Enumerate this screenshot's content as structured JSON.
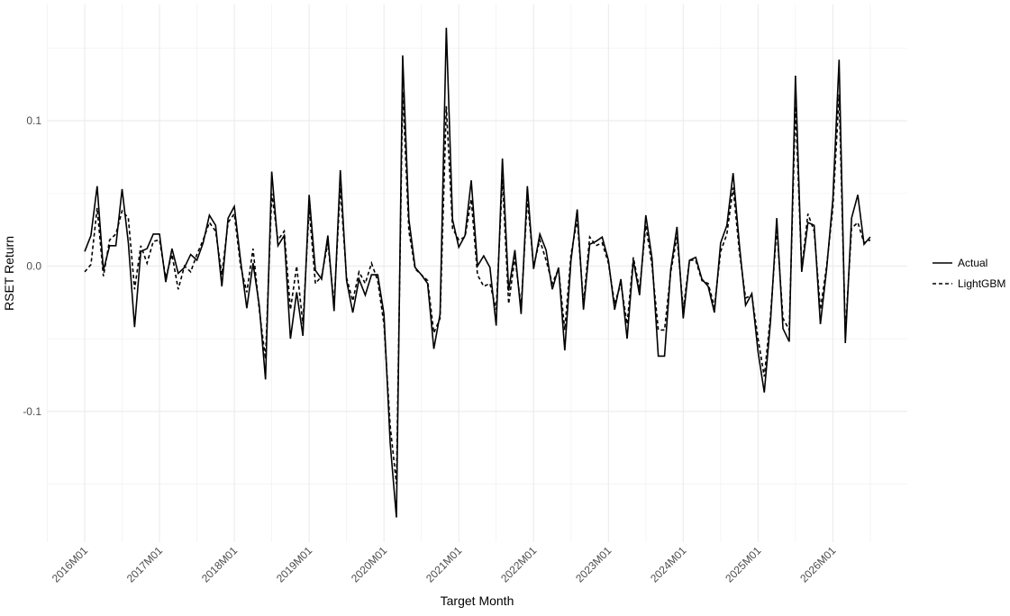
{
  "chart_data": {
    "type": "line",
    "x_label": "Target Month",
    "y_label": "RSET Return",
    "categories": [
      "2016M01",
      null,
      null,
      null,
      null,
      null,
      null,
      null,
      null,
      null,
      null,
      null,
      "2017M01",
      null,
      null,
      null,
      null,
      null,
      null,
      null,
      null,
      null,
      null,
      null,
      "2018M01",
      null,
      null,
      null,
      null,
      null,
      null,
      null,
      null,
      null,
      null,
      null,
      "2019M01",
      null,
      null,
      null,
      null,
      null,
      null,
      null,
      null,
      null,
      null,
      null,
      "2020M01",
      null,
      null,
      null,
      null,
      null,
      null,
      null,
      null,
      null,
      null,
      null,
      "2021M01",
      null,
      null,
      null,
      null,
      null,
      null,
      null,
      null,
      null,
      null,
      null,
      "2022M01",
      null,
      null,
      null,
      null,
      null,
      null,
      null,
      null,
      null,
      null,
      null,
      "2023M01",
      null,
      null,
      null,
      null,
      null,
      null,
      null,
      null,
      null,
      null,
      null,
      "2024M01",
      null,
      null,
      null,
      null,
      null,
      null,
      null,
      null,
      null,
      null,
      null,
      "2025M01",
      null,
      null,
      null,
      null,
      null,
      null,
      null,
      null,
      null,
      null,
      null,
      "2026M01",
      null,
      null,
      null,
      null,
      null,
      null
    ],
    "series": [
      {
        "name": "Actual",
        "color": "#000000",
        "dash": "solid",
        "values": [
          0.01,
          0.021,
          0.055,
          -0.003,
          0.014,
          0.014,
          0.053,
          0.016,
          -0.042,
          0.01,
          0.012,
          0.022,
          0.022,
          -0.011,
          0.012,
          -0.005,
          -0.001,
          0.008,
          0.004,
          0.016,
          0.035,
          0.028,
          -0.014,
          0.033,
          0.041,
          0.004,
          -0.029,
          0.002,
          -0.027,
          -0.078,
          0.065,
          0.014,
          0.021,
          -0.05,
          -0.018,
          -0.048,
          0.049,
          -0.003,
          -0.009,
          0.021,
          -0.031,
          0.066,
          -0.01,
          -0.032,
          -0.009,
          -0.02,
          -0.006,
          -0.006,
          -0.033,
          -0.122,
          -0.173,
          0.145,
          0.032,
          -0.001,
          -0.006,
          -0.012,
          -0.057,
          -0.033,
          0.164,
          0.032,
          0.013,
          0.021,
          0.059,
          0.0,
          0.007,
          -0.001,
          -0.041,
          0.074,
          -0.017,
          0.011,
          -0.033,
          0.055,
          -0.002,
          0.022,
          0.011,
          -0.016,
          -0.001,
          -0.058,
          0.004,
          0.039,
          -0.03,
          0.015,
          0.017,
          0.02,
          0.004,
          -0.03,
          -0.009,
          -0.05,
          0.004,
          -0.02,
          0.035,
          0.005,
          -0.062,
          -0.062,
          -0.002,
          0.027,
          -0.036,
          0.004,
          0.006,
          -0.009,
          -0.014,
          -0.032,
          0.016,
          0.028,
          0.064,
          0.015,
          -0.027,
          -0.019,
          -0.059,
          -0.087,
          -0.038,
          0.033,
          -0.043,
          -0.052,
          0.131,
          -0.004,
          0.03,
          0.028,
          -0.04,
          -0.002,
          0.046,
          0.142,
          -0.053,
          0.033,
          0.049,
          0.015,
          0.02
        ]
      },
      {
        "name": "LightGBM",
        "color": "#000000",
        "dash": "dashed",
        "values": [
          -0.004,
          0.001,
          0.04,
          -0.007,
          0.018,
          0.022,
          0.038,
          0.033,
          -0.016,
          0.014,
          0.002,
          0.017,
          0.018,
          -0.008,
          0.008,
          -0.016,
          0.0,
          -0.004,
          0.008,
          0.018,
          0.03,
          0.024,
          -0.006,
          0.03,
          0.036,
          0.0,
          -0.018,
          0.012,
          -0.03,
          -0.064,
          0.05,
          0.018,
          0.024,
          -0.03,
          0.0,
          -0.04,
          0.04,
          -0.012,
          -0.007,
          0.016,
          -0.026,
          0.054,
          -0.008,
          -0.024,
          -0.004,
          -0.012,
          0.002,
          -0.01,
          -0.04,
          -0.11,
          -0.15,
          0.12,
          0.024,
          -0.002,
          -0.006,
          -0.01,
          -0.046,
          -0.036,
          0.11,
          0.026,
          0.018,
          0.02,
          0.046,
          -0.006,
          -0.014,
          -0.012,
          -0.03,
          0.06,
          -0.026,
          0.006,
          -0.028,
          0.046,
          0.0,
          0.018,
          0.004,
          -0.012,
          -0.002,
          -0.044,
          0.008,
          0.032,
          -0.026,
          0.02,
          0.014,
          0.016,
          0.002,
          -0.026,
          -0.012,
          -0.04,
          0.006,
          -0.016,
          0.028,
          0.0,
          -0.044,
          -0.044,
          -0.004,
          0.02,
          -0.03,
          0.004,
          0.004,
          -0.01,
          -0.012,
          -0.028,
          0.01,
          0.022,
          0.054,
          0.01,
          -0.022,
          -0.02,
          -0.05,
          -0.076,
          -0.034,
          0.026,
          -0.036,
          -0.044,
          0.11,
          -0.002,
          0.036,
          0.024,
          -0.03,
          0.0,
          0.04,
          0.118,
          -0.046,
          0.026,
          0.03,
          0.016,
          0.018
        ]
      }
    ],
    "ylim": [
      -0.19,
      0.18
    ],
    "yticks": [
      -0.1,
      {
        "value": 0,
        "label": "0.0"
      },
      0.1
    ],
    "grid": true,
    "legend": "right"
  }
}
